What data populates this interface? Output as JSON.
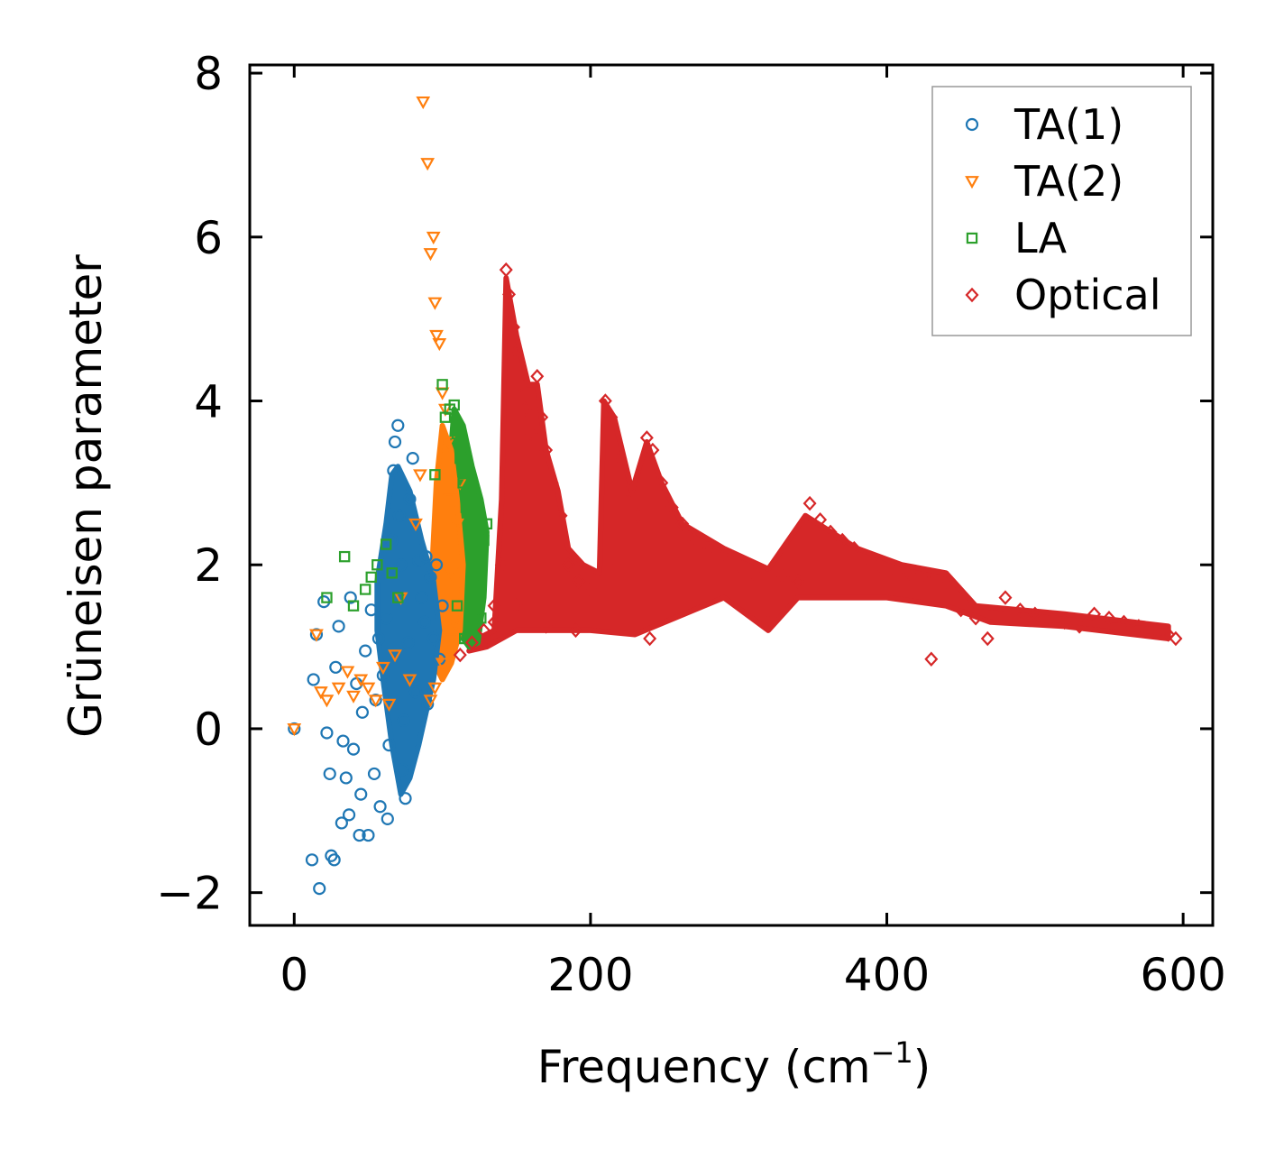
{
  "chart_data": {
    "type": "scatter",
    "title": "",
    "xlabel": "Frequency (cm",
    "xlabel_sup": "−1",
    "xlabel_close": ")",
    "ylabel": "Grüneisen parameter",
    "xlim": [
      -30,
      620
    ],
    "ylim": [
      -2.4,
      8.1
    ],
    "xticks": [
      0,
      200,
      400,
      600
    ],
    "yticks": [
      -2,
      0,
      2,
      4,
      6,
      8
    ],
    "xtick_labels": [
      "0",
      "200",
      "400",
      "600"
    ],
    "ytick_labels": [
      "−2",
      "0",
      "2",
      "4",
      "6",
      "8"
    ],
    "grid": false,
    "legend_position": "top-right",
    "series": [
      {
        "name": "TA(1)",
        "marker": "circle",
        "color": "#1f77b4",
        "points": [
          [
            0,
            0.0
          ],
          [
            12,
            -1.6
          ],
          [
            17,
            -1.95
          ],
          [
            13,
            0.6
          ],
          [
            15,
            1.15
          ],
          [
            20,
            1.55
          ],
          [
            22,
            -0.05
          ],
          [
            24,
            -0.55
          ],
          [
            25,
            -1.55
          ],
          [
            27,
            -1.6
          ],
          [
            28,
            0.75
          ],
          [
            30,
            1.25
          ],
          [
            32,
            -1.15
          ],
          [
            33,
            -0.15
          ],
          [
            35,
            -0.6
          ],
          [
            37,
            -1.05
          ],
          [
            38,
            1.6
          ],
          [
            40,
            -0.25
          ],
          [
            42,
            0.55
          ],
          [
            44,
            -1.3
          ],
          [
            45,
            -0.8
          ],
          [
            46,
            0.2
          ],
          [
            48,
            0.95
          ],
          [
            50,
            -1.3
          ],
          [
            52,
            1.45
          ],
          [
            54,
            -0.55
          ],
          [
            55,
            0.35
          ],
          [
            57,
            1.1
          ],
          [
            58,
            -0.95
          ],
          [
            60,
            0.65
          ],
          [
            62,
            1.35
          ],
          [
            63,
            -1.1
          ],
          [
            64,
            -0.2
          ],
          [
            66,
            2.3
          ],
          [
            67,
            3.15
          ],
          [
            68,
            3.5
          ],
          [
            70,
            3.7
          ],
          [
            71,
            2.6
          ],
          [
            72,
            2.0
          ],
          [
            73,
            -0.5
          ],
          [
            74,
            0.1
          ],
          [
            75,
            -0.85
          ],
          [
            77,
            1.05
          ],
          [
            78,
            2.8
          ],
          [
            80,
            3.3
          ],
          [
            82,
            0.45
          ],
          [
            84,
            2.05
          ],
          [
            86,
            1.6
          ],
          [
            88,
            1.3
          ],
          [
            89,
            2.1
          ],
          [
            90,
            0.3
          ],
          [
            92,
            1.85
          ],
          [
            94,
            1.1
          ],
          [
            96,
            2.0
          ],
          [
            98,
            0.85
          ],
          [
            100,
            1.5
          ]
        ]
      },
      {
        "name": "TA(2)",
        "marker": "triangle-down",
        "color": "#ff7f0e",
        "points": [
          [
            0,
            0.0
          ],
          [
            15,
            1.15
          ],
          [
            18,
            0.45
          ],
          [
            22,
            0.35
          ],
          [
            30,
            0.5
          ],
          [
            36,
            0.7
          ],
          [
            40,
            0.4
          ],
          [
            45,
            0.6
          ],
          [
            50,
            0.5
          ],
          [
            55,
            0.35
          ],
          [
            60,
            0.75
          ],
          [
            64,
            0.3
          ],
          [
            68,
            0.9
          ],
          [
            72,
            1.6
          ],
          [
            78,
            0.6
          ],
          [
            82,
            2.5
          ],
          [
            85,
            3.1
          ],
          [
            87,
            7.65
          ],
          [
            90,
            6.9
          ],
          [
            92,
            5.8
          ],
          [
            94,
            6.0
          ],
          [
            95,
            5.2
          ],
          [
            96,
            4.8
          ],
          [
            98,
            4.7
          ],
          [
            100,
            4.1
          ],
          [
            102,
            3.9
          ],
          [
            104,
            3.5
          ],
          [
            105,
            2.8
          ],
          [
            106,
            1.9
          ],
          [
            108,
            1.3
          ],
          [
            110,
            2.5
          ],
          [
            112,
            3.0
          ],
          [
            95,
            0.5
          ],
          [
            92,
            0.35
          ],
          [
            100,
            0.8
          ],
          [
            105,
            1.1
          ]
        ]
      },
      {
        "name": "LA",
        "marker": "square",
        "color": "#2ca02c",
        "points": [
          [
            22,
            1.6
          ],
          [
            34,
            2.1
          ],
          [
            40,
            1.5
          ],
          [
            48,
            1.7
          ],
          [
            52,
            1.85
          ],
          [
            56,
            2.0
          ],
          [
            62,
            2.25
          ],
          [
            66,
            1.9
          ],
          [
            70,
            1.6
          ],
          [
            95,
            3.1
          ],
          [
            100,
            4.2
          ],
          [
            102,
            3.8
          ],
          [
            105,
            3.9
          ],
          [
            108,
            3.95
          ],
          [
            110,
            3.6
          ],
          [
            112,
            3.3
          ],
          [
            114,
            3.0
          ],
          [
            116,
            2.7
          ],
          [
            118,
            2.4
          ],
          [
            120,
            2.1
          ],
          [
            122,
            1.85
          ],
          [
            124,
            1.6
          ],
          [
            126,
            1.35
          ],
          [
            128,
            2.3
          ],
          [
            130,
            2.5
          ],
          [
            115,
            1.1
          ],
          [
            118,
            1.25
          ],
          [
            110,
            1.5
          ]
        ]
      },
      {
        "name": "Optical",
        "marker": "diamond",
        "color": "#d62728",
        "points": [
          [
            112,
            0.9
          ],
          [
            120,
            1.05
          ],
          [
            128,
            1.2
          ],
          [
            135,
            1.5
          ],
          [
            140,
            2.0
          ],
          [
            143,
            5.6
          ],
          [
            145,
            5.3
          ],
          [
            148,
            4.9
          ],
          [
            150,
            4.6
          ],
          [
            153,
            4.2
          ],
          [
            156,
            3.9
          ],
          [
            160,
            3.6
          ],
          [
            164,
            4.3
          ],
          [
            167,
            3.8
          ],
          [
            170,
            3.4
          ],
          [
            174,
            3.0
          ],
          [
            180,
            2.6
          ],
          [
            185,
            2.0
          ],
          [
            192,
            1.8
          ],
          [
            200,
            1.7
          ],
          [
            210,
            4.0
          ],
          [
            214,
            3.8
          ],
          [
            220,
            3.3
          ],
          [
            226,
            2.9
          ],
          [
            232,
            2.6
          ],
          [
            238,
            3.55
          ],
          [
            242,
            3.4
          ],
          [
            248,
            3.0
          ],
          [
            255,
            2.7
          ],
          [
            262,
            2.5
          ],
          [
            270,
            2.3
          ],
          [
            280,
            2.2
          ],
          [
            290,
            2.1
          ],
          [
            300,
            2.0
          ],
          [
            310,
            1.9
          ],
          [
            320,
            1.3
          ],
          [
            330,
            1.85
          ],
          [
            340,
            1.8
          ],
          [
            348,
            2.75
          ],
          [
            355,
            2.55
          ],
          [
            362,
            2.4
          ],
          [
            370,
            2.3
          ],
          [
            378,
            2.2
          ],
          [
            386,
            2.1
          ],
          [
            395,
            2.0
          ],
          [
            405,
            1.95
          ],
          [
            415,
            1.9
          ],
          [
            425,
            1.85
          ],
          [
            430,
            0.85
          ],
          [
            440,
            1.8
          ],
          [
            450,
            1.45
          ],
          [
            460,
            1.35
          ],
          [
            468,
            1.1
          ],
          [
            480,
            1.6
          ],
          [
            490,
            1.45
          ],
          [
            500,
            1.4
          ],
          [
            510,
            1.35
          ],
          [
            520,
            1.3
          ],
          [
            530,
            1.25
          ],
          [
            540,
            1.4
          ],
          [
            550,
            1.35
          ],
          [
            560,
            1.3
          ],
          [
            570,
            1.25
          ],
          [
            580,
            1.2
          ],
          [
            590,
            1.15
          ],
          [
            595,
            1.1
          ],
          [
            240,
            1.1
          ],
          [
            215,
            2.1
          ],
          [
            190,
            1.2
          ],
          [
            170,
            1.25
          ],
          [
            135,
            1.3
          ],
          [
            150,
            1.5
          ]
        ]
      }
    ]
  }
}
